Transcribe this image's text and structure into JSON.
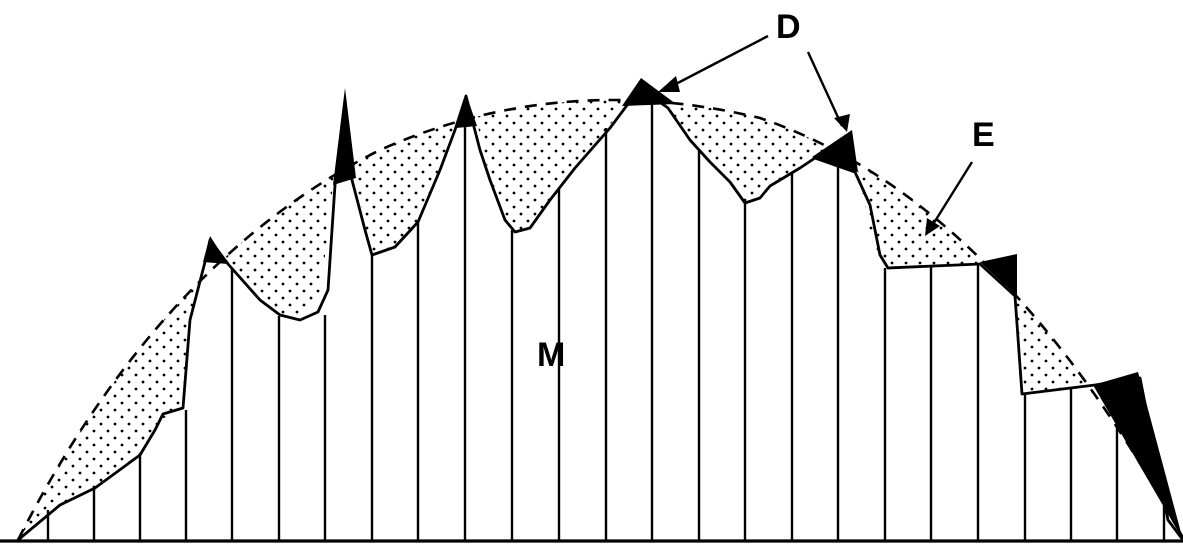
{
  "diagram": {
    "labels": {
      "mean_surface": "M",
      "dark_regions": "D",
      "envelope_regions": "E"
    },
    "style": {
      "ink": "#000000",
      "paper": "#ffffff"
    }
  }
}
